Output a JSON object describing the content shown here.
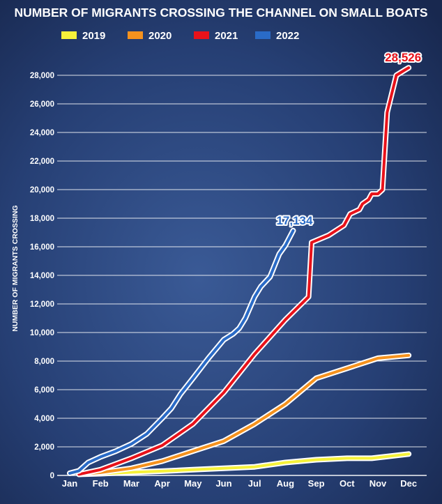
{
  "chart_data": {
    "type": "line",
    "title": "NUMBER OF MIGRANTS CROSSING THE CHANNEL ON SMALL BOATS",
    "ylabel": "NUMBER OF MIGRANTS CROSSING",
    "xlabel": "",
    "categories": [
      "Jan",
      "Feb",
      "Mar",
      "Apr",
      "May",
      "Jun",
      "Jul",
      "Aug",
      "Sep",
      "Oct",
      "Nov",
      "Dec"
    ],
    "yticks": [
      0,
      2000,
      4000,
      6000,
      8000,
      10000,
      12000,
      14000,
      16000,
      18000,
      20000,
      22000,
      24000,
      26000,
      28000
    ],
    "ytick_labels": [
      "0",
      "2,000",
      "4,000",
      "6,000",
      "8,000",
      "10,000",
      "12,000",
      "14,000",
      "16,000",
      "18,000",
      "20,000",
      "22,000",
      "24,000",
      "26,000",
      "28,000"
    ],
    "ylim": [
      0,
      28000
    ],
    "grid": true,
    "legend_position": "top",
    "series": [
      {
        "name": "2019",
        "color": "#f6f23a",
        "x": [
          0.3,
          1,
          2,
          3,
          4,
          5,
          6,
          7,
          8,
          9,
          9.8,
          11
        ],
        "values": [
          80,
          120,
          220,
          300,
          400,
          500,
          600,
          900,
          1100,
          1200,
          1200,
          1500
        ]
      },
      {
        "name": "2020",
        "color": "#f5921e",
        "x": [
          0.3,
          1,
          2,
          3,
          4,
          5,
          6,
          7,
          8,
          9,
          10,
          11
        ],
        "values": [
          80,
          200,
          500,
          1000,
          1700,
          2400,
          3600,
          5000,
          6800,
          7500,
          8200,
          8400
        ]
      },
      {
        "name": "2021",
        "color": "#e8121a",
        "x": [
          0.3,
          1,
          2,
          3,
          4,
          5,
          6,
          7,
          7.75,
          7.85,
          8.4,
          8.9,
          9.1,
          9.4,
          9.5,
          9.7,
          9.8,
          10,
          10.15,
          10.3,
          10.6,
          10.9,
          11
        ],
        "values": [
          80,
          400,
          1200,
          2100,
          3600,
          5800,
          8500,
          10900,
          12500,
          16300,
          16800,
          17500,
          18300,
          18600,
          19000,
          19300,
          19700,
          19700,
          20000,
          25400,
          28000,
          28400,
          28526
        ]
      },
      {
        "name": "2022",
        "color": "#2a6bc7",
        "x": [
          0,
          0.3,
          0.6,
          1,
          1.5,
          2,
          2.5,
          3,
          3.3,
          3.6,
          4,
          4.5,
          5,
          5.3,
          5.5,
          5.7,
          6,
          6.2,
          6.5,
          6.8,
          7,
          7.25
        ],
        "values": [
          150,
          320,
          900,
          1300,
          1700,
          2200,
          2900,
          4000,
          4700,
          5700,
          6800,
          8200,
          9500,
          9900,
          10300,
          11000,
          12500,
          13200,
          13900,
          15500,
          16100,
          17134
        ]
      }
    ],
    "annotations": [
      {
        "series": "2022",
        "text": "17,134"
      },
      {
        "series": "2021",
        "text": "28,526"
      }
    ]
  }
}
